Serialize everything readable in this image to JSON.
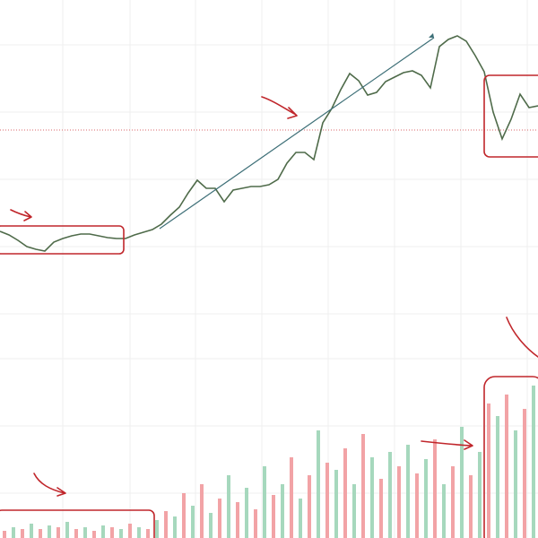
{
  "chart_data": [
    {
      "type": "line",
      "color": "#4f6b4a",
      "ylim": [
        0,
        100
      ],
      "values": [
        35.5,
        34.5,
        33,
        31.25,
        30.5,
        30,
        32.5,
        33.5,
        34.25,
        34.75,
        34.75,
        34.25,
        33.75,
        33.5,
        33.5,
        34.5,
        35.25,
        36,
        37.5,
        40,
        42.25,
        46.25,
        49.75,
        47.5,
        47.5,
        43.75,
        47,
        47.5,
        48,
        48,
        48.5,
        50,
        54.5,
        57.5,
        57.5,
        55.5,
        65.75,
        69.75,
        75,
        79.5,
        77.5,
        73.5,
        74.25,
        77.25,
        78.5,
        79.75,
        80.25,
        79,
        75.5,
        87,
        89,
        90,
        88.5,
        84.5,
        80,
        68.75,
        61.25,
        66.75,
        73.75,
        70,
        70.5
      ]
    },
    {
      "type": "bar",
      "colors": [
        "#f2a3a6",
        "#a6d8bd"
      ],
      "ylim": [
        0,
        100
      ],
      "values": [
        4,
        6,
        5,
        8,
        5,
        7,
        6,
        9,
        5,
        6,
        4,
        7,
        6,
        5,
        8,
        6,
        5,
        10,
        15,
        12,
        25,
        18,
        30,
        14,
        22,
        35,
        20,
        28,
        16,
        40,
        24,
        30,
        45,
        22,
        35,
        60,
        42,
        38,
        50,
        30,
        58,
        45,
        33,
        48,
        40,
        52,
        36,
        44,
        55,
        30,
        40,
        62,
        35,
        48,
        75,
        68,
        80,
        60,
        72,
        85
      ]
    }
  ]
}
